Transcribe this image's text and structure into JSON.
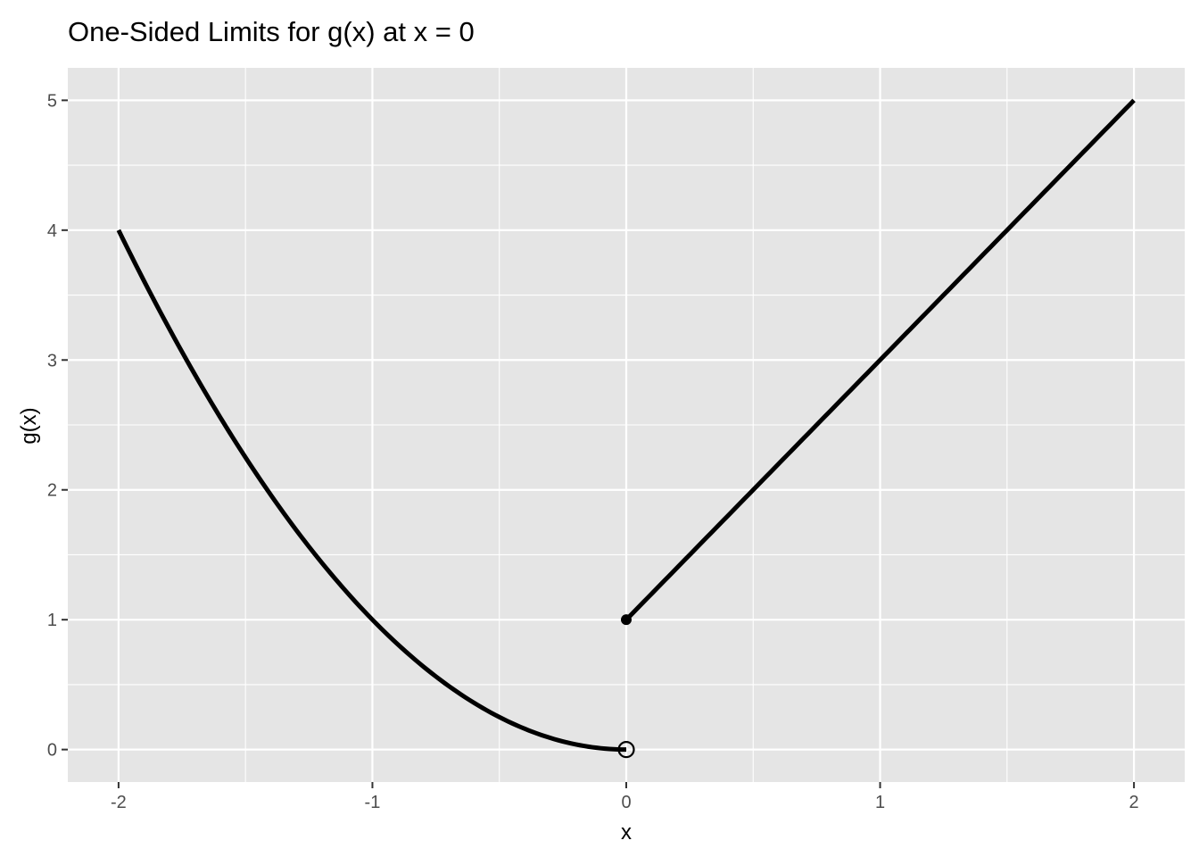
{
  "chart_data": {
    "type": "line",
    "title": "One-Sided Limits for g(x) at x = 0",
    "xlabel": "x",
    "ylabel": "g(x)",
    "xlim": [
      -2.2,
      2.2
    ],
    "ylim": [
      -0.25,
      5.25
    ],
    "x_ticks": [
      -2,
      -1,
      0,
      1,
      2
    ],
    "y_ticks": [
      0,
      1,
      2,
      3,
      4,
      5
    ],
    "grid": true,
    "legend": "none",
    "background": "#e5e5e5",
    "grid_color": "#ffffff",
    "line_color": "#000000",
    "series": [
      {
        "domain": [
          -2,
          0
        ],
        "formula": "x^2",
        "x": [
          -2,
          -1.5,
          -1,
          -0.5,
          0
        ],
        "y": [
          4,
          2.25,
          1,
          0.25,
          0
        ]
      },
      {
        "domain": [
          0,
          2
        ],
        "formula": "2x + 1",
        "x": [
          0,
          1,
          2
        ],
        "y": [
          1,
          3,
          5
        ]
      }
    ],
    "points": [
      {
        "x": 0,
        "y": 0,
        "style": "open"
      },
      {
        "x": 0,
        "y": 1,
        "style": "filled"
      }
    ]
  }
}
